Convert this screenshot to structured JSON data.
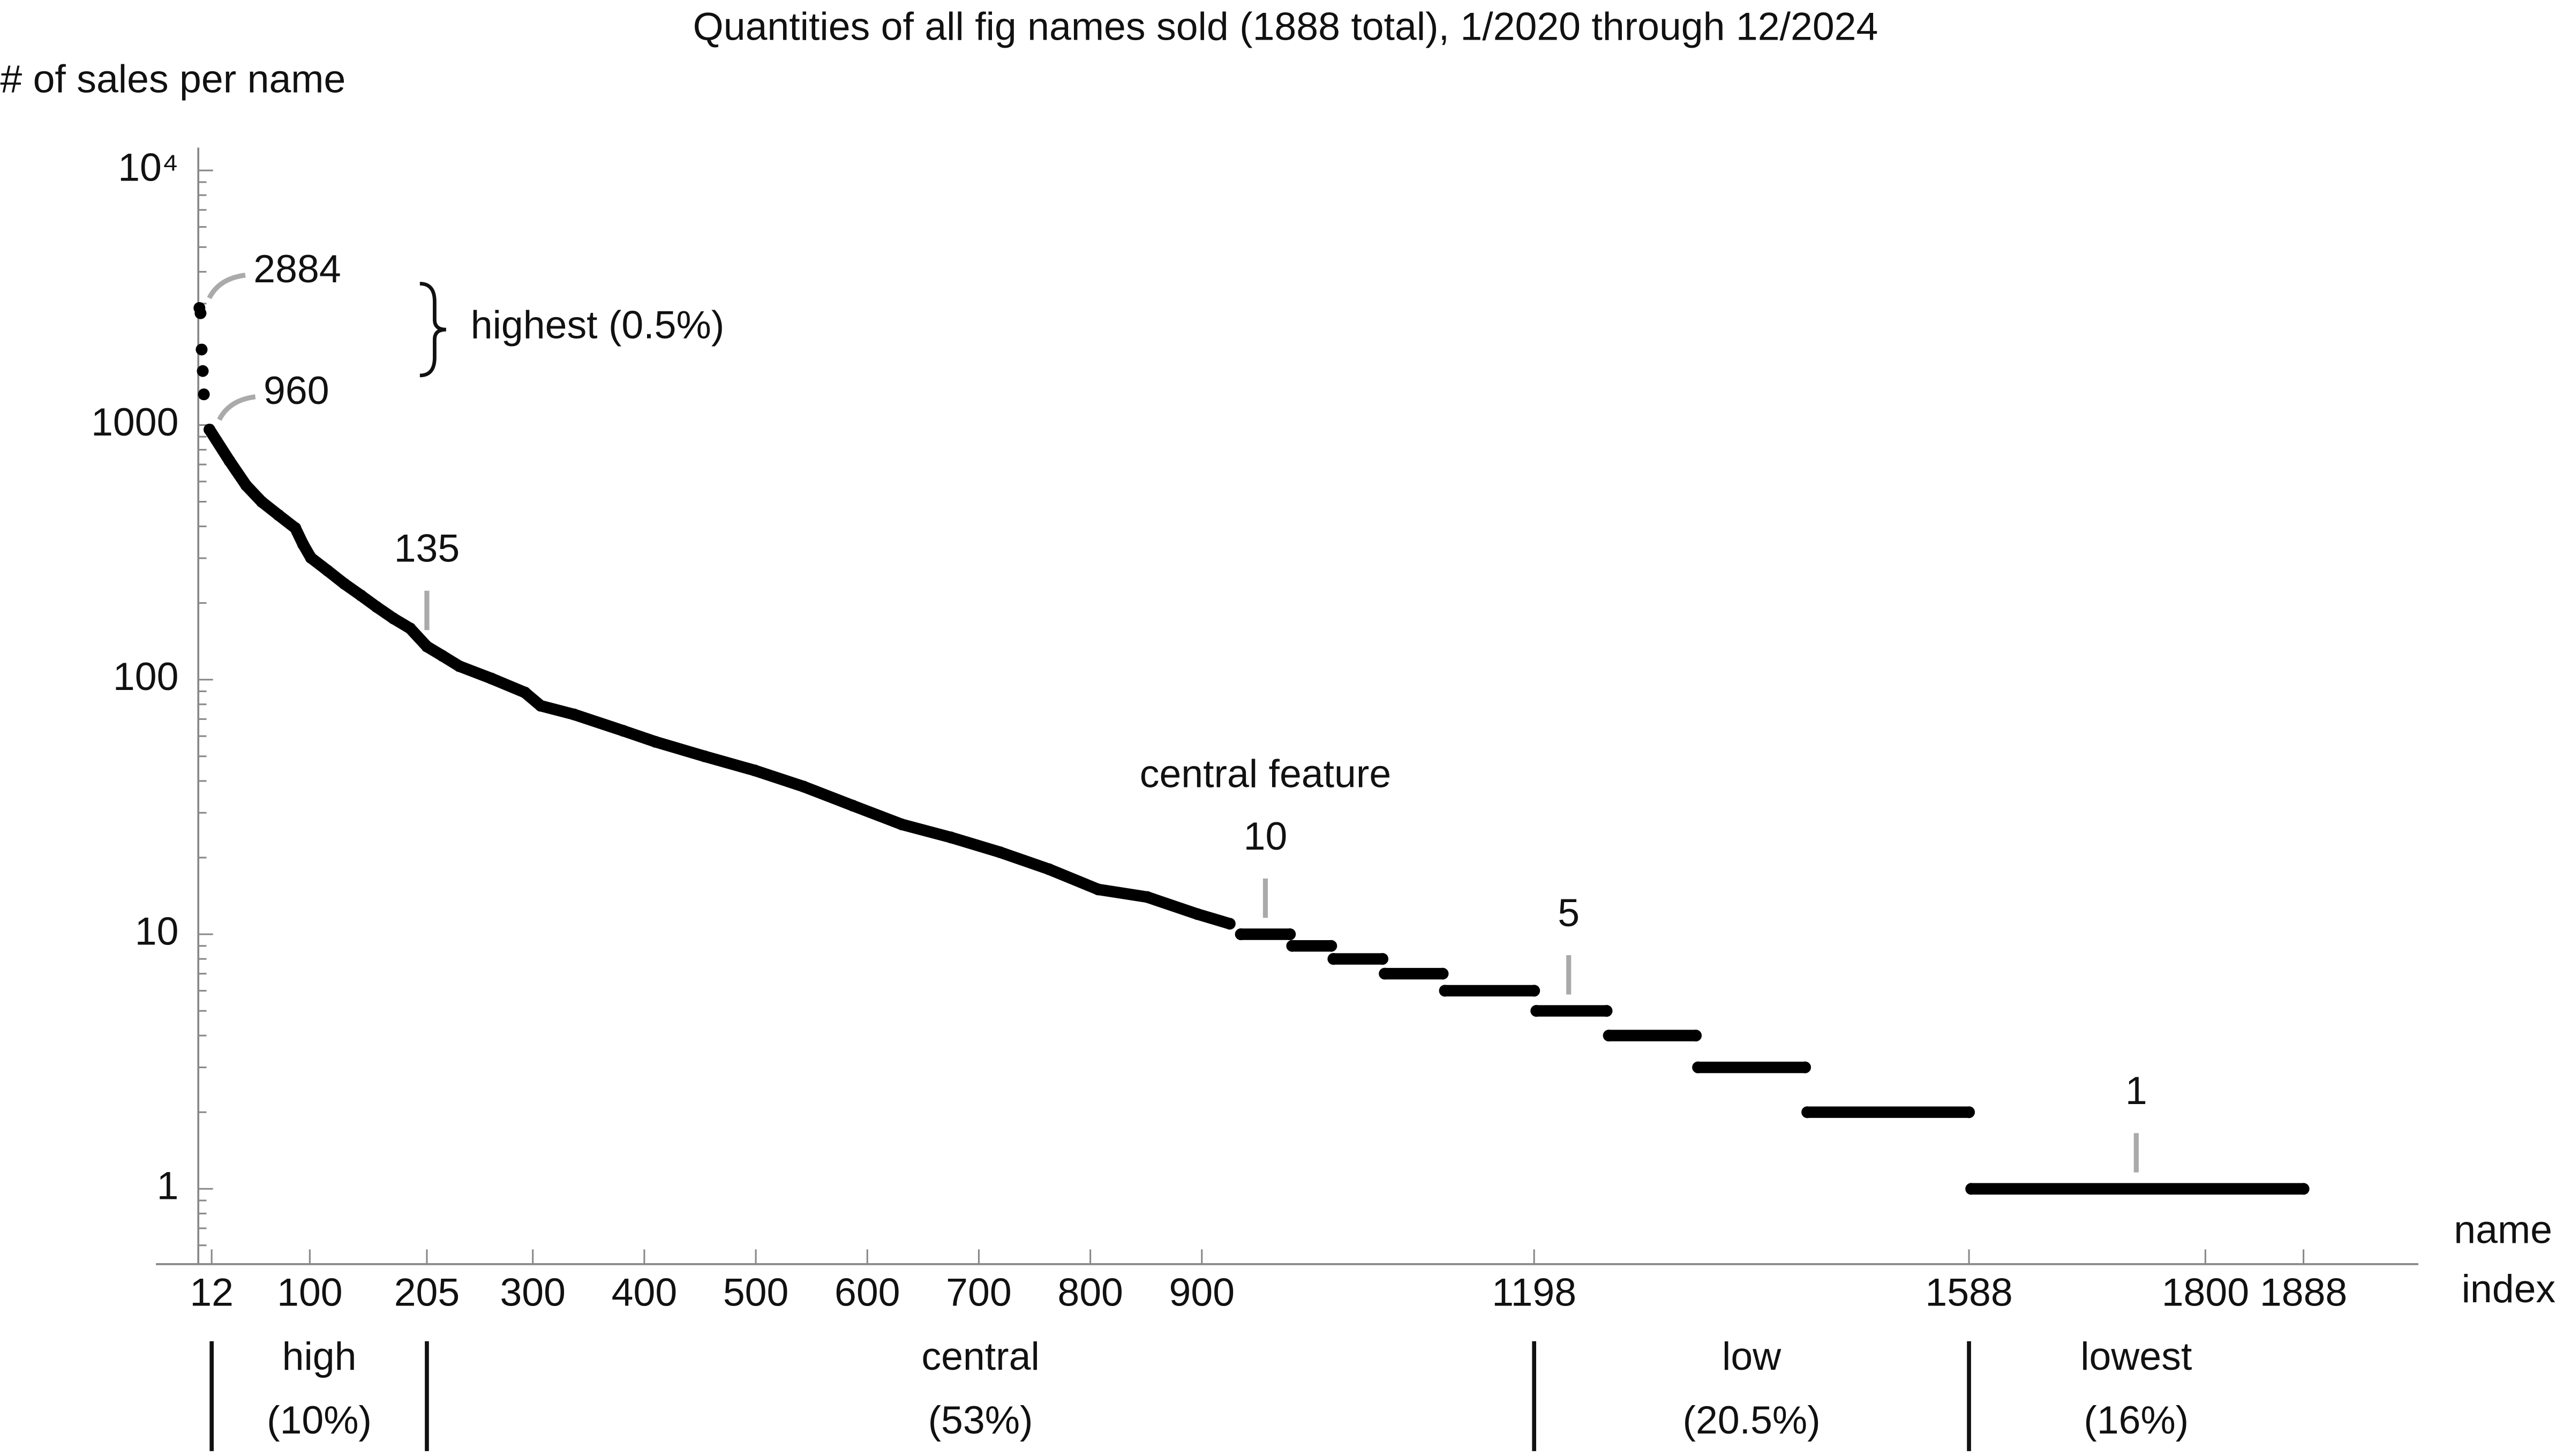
{
  "chart_data": {
    "type": "line",
    "title": "Quantities of all fig names sold (1888 total), 1/2020 through 12/2024",
    "ylabel": "# of sales per name",
    "xlabel": "name index",
    "log_y": true,
    "color": "#000000",
    "xlim": [
      -38,
      1991
    ],
    "ylim": [
      0.506,
      12300
    ],
    "xticks": [
      12,
      100,
      205,
      300,
      400,
      500,
      600,
      700,
      800,
      900,
      1198,
      1588,
      1800,
      1888
    ],
    "yticks": [
      1,
      10,
      100,
      1000,
      {
        "value": 10000,
        "label": "10⁴"
      }
    ],
    "x": [
      1,
      null,
      2,
      null,
      3,
      null,
      4,
      null,
      5,
      null,
      10,
      28,
      43,
      57,
      72,
      87,
      94,
      101,
      116,
      131,
      146,
      160,
      175,
      190,
      205,
      219,
      234,
      263,
      293,
      307,
      337,
      381,
      410,
      454,
      499,
      543,
      587,
      631,
      675,
      719,
      763,
      807,
      851,
      896,
      925,
      null,
      935,
      979,
      null,
      981,
      1016,
      null,
      1018,
      1062,
      null,
      1064,
      1116,
      null,
      1118,
      1198,
      null,
      1200,
      1263,
      null,
      1265,
      1343,
      null,
      1345,
      1441,
      null,
      1443,
      1588,
      null,
      1590,
      1888
    ],
    "values": [
      2884,
      null,
      2750,
      null,
      1980,
      null,
      1630,
      null,
      1320,
      null,
      960,
      723,
      579,
      499,
      443,
      394,
      340,
      301,
      268,
      238,
      214,
      193,
      174,
      159,
      135,
      124,
      113,
      101,
      89,
      79,
      73,
      63,
      57,
      50,
      44,
      38,
      32,
      27,
      24,
      21,
      18,
      15,
      14,
      12,
      11,
      null,
      10,
      10,
      null,
      9,
      9,
      null,
      8,
      8,
      null,
      7,
      7,
      null,
      6,
      6,
      null,
      5,
      5,
      null,
      4,
      4,
      null,
      3,
      3,
      null,
      2,
      2,
      null,
      1,
      1
    ],
    "annotations": [
      {
        "x": 1,
        "value": 2884,
        "leader": "curve"
      },
      {
        "x": 10,
        "value": 960,
        "leader": "curve"
      },
      {
        "x": 205,
        "value": 135,
        "leader": "vertical"
      },
      {
        "x": 957,
        "value": 10,
        "leader": "vertical",
        "title": "central feature"
      },
      {
        "x": 1229,
        "value": 5,
        "leader": "vertical"
      },
      {
        "x": 1738,
        "value": 1,
        "leader": "vertical"
      }
    ],
    "highest_label": "highest (0.5%)",
    "regions": [
      {
        "name": "high",
        "share": "(10%)",
        "from": 12,
        "to": 205
      },
      {
        "name": "central",
        "share": "(53%)",
        "from": 205,
        "to": 1198
      },
      {
        "name": "low",
        "share": "(20.5%)",
        "from": 1198,
        "to": 1588
      },
      {
        "name": "lowest",
        "share": "(16%)",
        "from": 1588,
        "to": 1888
      }
    ]
  }
}
